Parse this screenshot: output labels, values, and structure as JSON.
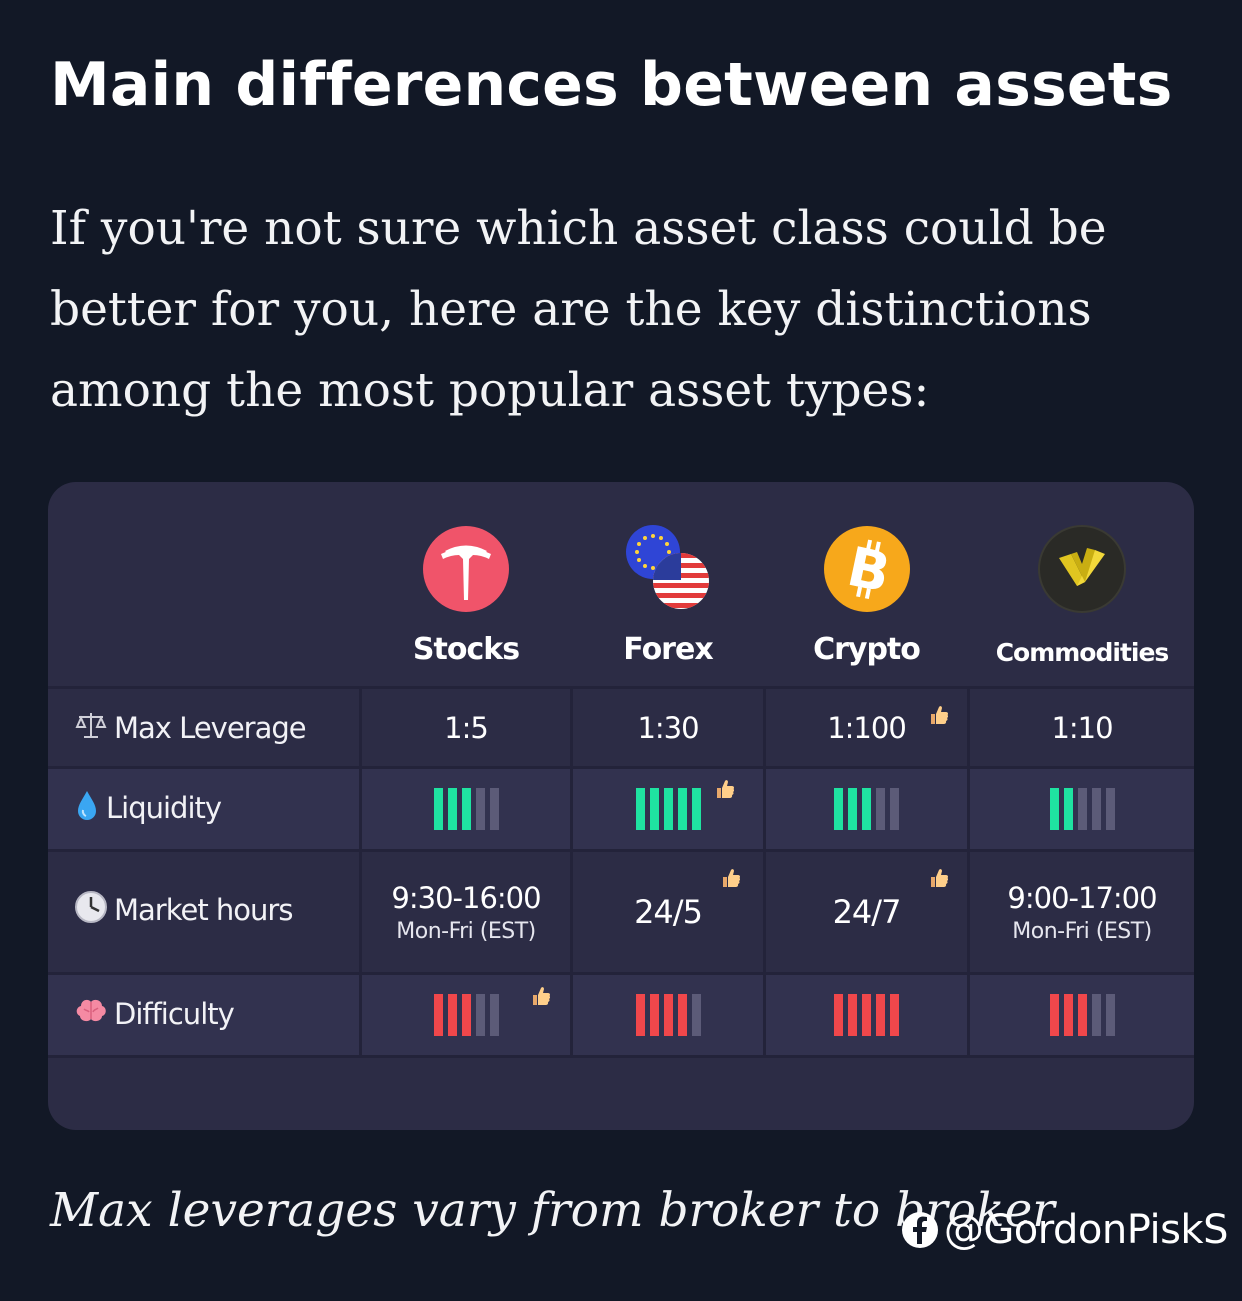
{
  "heading": "Main differences between assets",
  "intro": "If you're not sure which asset class could be better for you, here are the key distinctions among the most popular asset types:",
  "table": {
    "columns": [
      {
        "label": "Stocks",
        "icon": "tesla-logo-icon"
      },
      {
        "label": "Forex",
        "icon": "eu-us-flags-icon"
      },
      {
        "label": "Crypto",
        "icon": "bitcoin-icon"
      },
      {
        "label": "Commodities",
        "icon": "gold-bars-icon"
      }
    ],
    "rows": {
      "max_leverage": {
        "label": "Max Leverage",
        "icon": "balance-scale-icon",
        "values": [
          "1:5",
          "1:30",
          "1:100",
          "1:10"
        ],
        "thumbs_up": [
          false,
          false,
          true,
          false
        ]
      },
      "liquidity": {
        "label": "Liquidity",
        "icon": "water-drop-icon",
        "levels": [
          3,
          5,
          3,
          2
        ],
        "max_level": 5,
        "color": "#1fe3a1",
        "thumbs_up": [
          false,
          true,
          false,
          false
        ]
      },
      "market_hours": {
        "label": "Market hours",
        "icon": "clock-icon",
        "values": [
          "9:30-16:00",
          "24/5",
          "24/7",
          "9:00-17:00"
        ],
        "subvalues": [
          "Mon-Fri (EST)",
          "",
          "",
          "Mon-Fri (EST)"
        ],
        "thumbs_up": [
          false,
          true,
          true,
          false
        ]
      },
      "difficulty": {
        "label": "Difficulty",
        "icon": "brain-icon",
        "levels": [
          3,
          4,
          5,
          3
        ],
        "max_level": 5,
        "color": "#f0474b",
        "thumbs_up": [
          true,
          false,
          false,
          false
        ]
      }
    }
  },
  "caption": "Max leverages vary from broker to broker",
  "watermark": "@GordonPiskS",
  "colors": {
    "background": "#121826",
    "card": "#2c2c45",
    "green_bar": "#1fe3a1",
    "red_bar": "#f0474b",
    "inactive_bar": "#5c5b78"
  }
}
